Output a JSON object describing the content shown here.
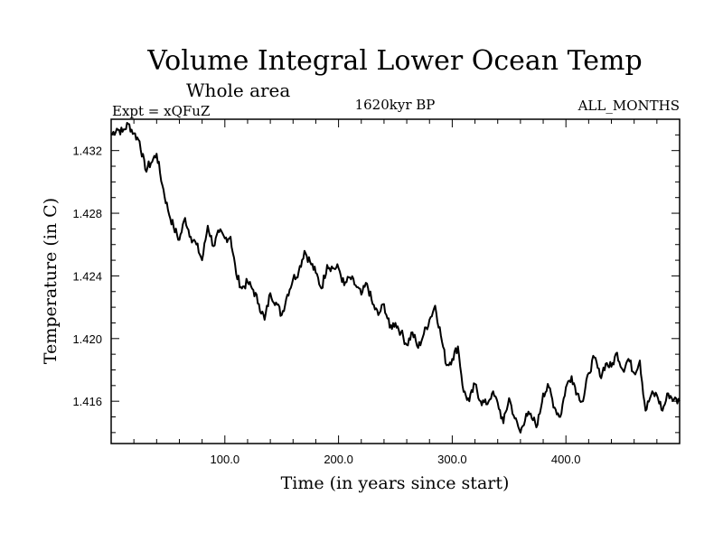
{
  "chart_data": {
    "type": "line",
    "title": "Volume Integral Lower Ocean Temp",
    "subtitle": "Whole area",
    "experiment": "Expt = xQFuZ",
    "period": "1620kyr BP",
    "months": "ALL_MONTHS",
    "xlabel": "Time (in years since start)",
    "ylabel": "Temperature (in C)",
    "xlim": [
      0,
      500
    ],
    "ylim": [
      1.4133,
      1.434
    ],
    "x_ticks": [
      100,
      200,
      300,
      400
    ],
    "x_tick_labels": [
      "100.0",
      "200.0",
      "300.0",
      "400.0"
    ],
    "y_ticks": [
      1.416,
      1.42,
      1.424,
      1.428,
      1.432
    ],
    "y_tick_labels": [
      "1.416",
      "1.420",
      "1.424",
      "1.428",
      "1.432"
    ],
    "series": [
      {
        "name": "Volume Integral Lower Ocean Temp",
        "x": [
          0,
          5,
          10,
          15,
          20,
          25,
          30,
          35,
          40,
          45,
          50,
          55,
          60,
          65,
          70,
          75,
          80,
          85,
          90,
          95,
          100,
          105,
          110,
          115,
          120,
          125,
          130,
          135,
          140,
          145,
          150,
          155,
          160,
          165,
          170,
          175,
          180,
          185,
          190,
          195,
          200,
          205,
          210,
          215,
          220,
          225,
          230,
          235,
          240,
          245,
          250,
          255,
          260,
          265,
          270,
          275,
          280,
          285,
          290,
          295,
          300,
          305,
          310,
          315,
          320,
          325,
          330,
          335,
          340,
          345,
          350,
          355,
          360,
          365,
          370,
          375,
          380,
          385,
          390,
          395,
          400,
          405,
          410,
          415,
          420,
          425,
          430,
          435,
          440,
          445,
          450,
          455,
          460,
          465,
          470,
          475,
          480,
          485,
          490,
          495,
          500
        ],
        "values": [
          1.433,
          1.4334,
          1.4332,
          1.4337,
          1.4331,
          1.4326,
          1.4308,
          1.4312,
          1.4318,
          1.4298,
          1.4282,
          1.4271,
          1.4263,
          1.4277,
          1.4265,
          1.426,
          1.425,
          1.4272,
          1.4259,
          1.4268,
          1.4264,
          1.4265,
          1.4241,
          1.4232,
          1.4236,
          1.4231,
          1.4222,
          1.4212,
          1.4229,
          1.4223,
          1.4215,
          1.4228,
          1.4238,
          1.4243,
          1.4256,
          1.4249,
          1.4242,
          1.4232,
          1.4247,
          1.4245,
          1.4245,
          1.4234,
          1.4239,
          1.4234,
          1.4228,
          1.4235,
          1.4222,
          1.4215,
          1.4222,
          1.4207,
          1.421,
          1.4204,
          1.4196,
          1.4204,
          1.4194,
          1.4203,
          1.4212,
          1.4221,
          1.4202,
          1.4183,
          1.4187,
          1.4195,
          1.4166,
          1.416,
          1.4171,
          1.416,
          1.4158,
          1.4165,
          1.4159,
          1.4146,
          1.4162,
          1.4149,
          1.414,
          1.4152,
          1.4149,
          1.4145,
          1.4165,
          1.4169,
          1.4156,
          1.415,
          1.4169,
          1.4176,
          1.4165,
          1.416,
          1.4178,
          1.4188,
          1.4176,
          1.4184,
          1.4182,
          1.4191,
          1.418,
          1.4187,
          1.4178,
          1.4186,
          1.4154,
          1.4164,
          1.4164,
          1.4154,
          1.4165,
          1.4161,
          1.416
        ]
      }
    ]
  }
}
